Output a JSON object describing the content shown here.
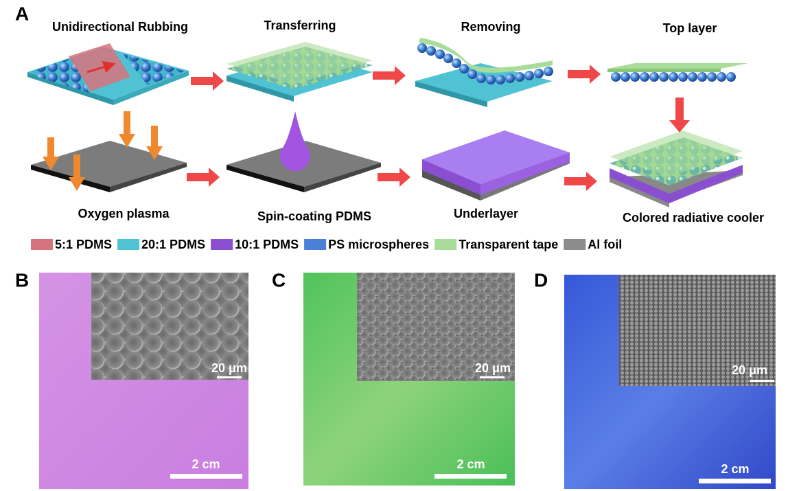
{
  "panel_a": {
    "label": "A",
    "steps": [
      "Unidirectional Rubbing",
      "Transferring",
      "Removing",
      "Top layer",
      "Oxygen plasma",
      "Spin-coating PDMS",
      "Underlayer",
      "Colored radiative cooler"
    ],
    "legend": [
      {
        "label": "5:1 PDMS",
        "color": "#d7737d"
      },
      {
        "label": "20:1 PDMS",
        "color": "#4fc3d4"
      },
      {
        "label": "10:1 PDMS",
        "color": "#8a4fd0"
      },
      {
        "label": "PS microspheres",
        "color": "#4a80d8"
      },
      {
        "label": "Transparent tape",
        "color": "#a8dc98"
      },
      {
        "label": "Al foil",
        "color": "#8c8c8c"
      }
    ]
  },
  "panel_b": {
    "label": "B",
    "inset_scale": "20 μm",
    "scale": "2 cm"
  },
  "panel_c": {
    "label": "C",
    "inset_scale": "20 μm",
    "scale": "2 cm"
  },
  "panel_d": {
    "label": "D",
    "inset_scale": "20 μm",
    "scale": "2 cm"
  }
}
